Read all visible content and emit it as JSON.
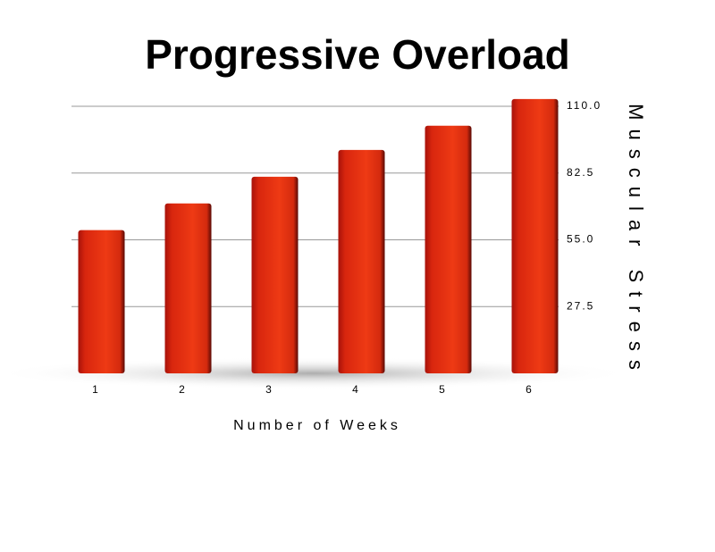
{
  "chart_data": {
    "type": "bar",
    "title": "Progressive Overload",
    "x_label": "Number of Weeks",
    "y_label": "Muscular Stress",
    "categories": [
      "1",
      "2",
      "3",
      "4",
      "5",
      "6"
    ],
    "values": [
      59,
      70,
      81,
      92,
      102,
      113
    ],
    "color": "#e2300f",
    "ylim": [
      0,
      110
    ],
    "yticks": [
      27.5,
      {
        "value": 55,
        "label": "55.0"
      },
      82.5,
      {
        "value": 110,
        "label": "110.0"
      }
    ],
    "y_axis_side": "right",
    "grid": true
  }
}
